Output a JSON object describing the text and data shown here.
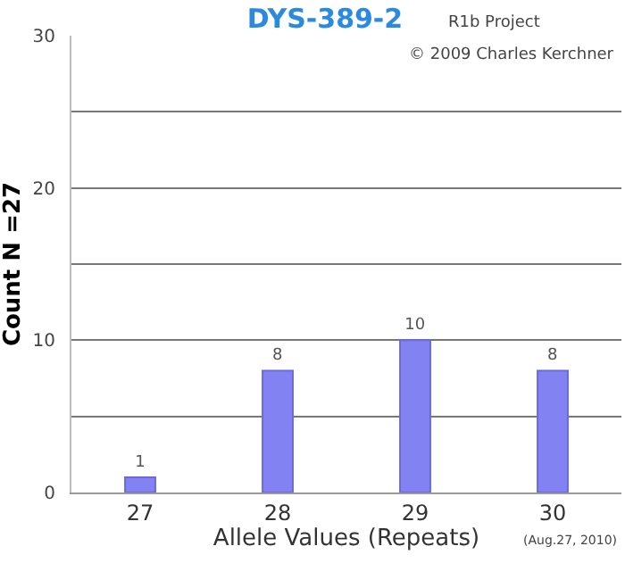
{
  "chart_data": {
    "type": "bar",
    "title": "DYS-389-2",
    "xlabel": "Allele Values (Repeats)",
    "ylabel": "Count N =27",
    "categories": [
      "27",
      "28",
      "29",
      "30"
    ],
    "values": [
      1,
      8,
      10,
      8
    ],
    "color": "#8282f2",
    "ylim": [
      0,
      30
    ],
    "yticks": [
      0,
      {
        "value": 5,
        "label": null
      },
      10,
      {
        "value": 15,
        "label": null
      },
      20,
      {
        "value": 25,
        "label": null
      },
      30
    ],
    "grid": "y",
    "data_labels": true,
    "annotations": [
      "R1b Project",
      "© 2009 Charles Kerchner",
      "(Aug.27, 2010)"
    ]
  }
}
